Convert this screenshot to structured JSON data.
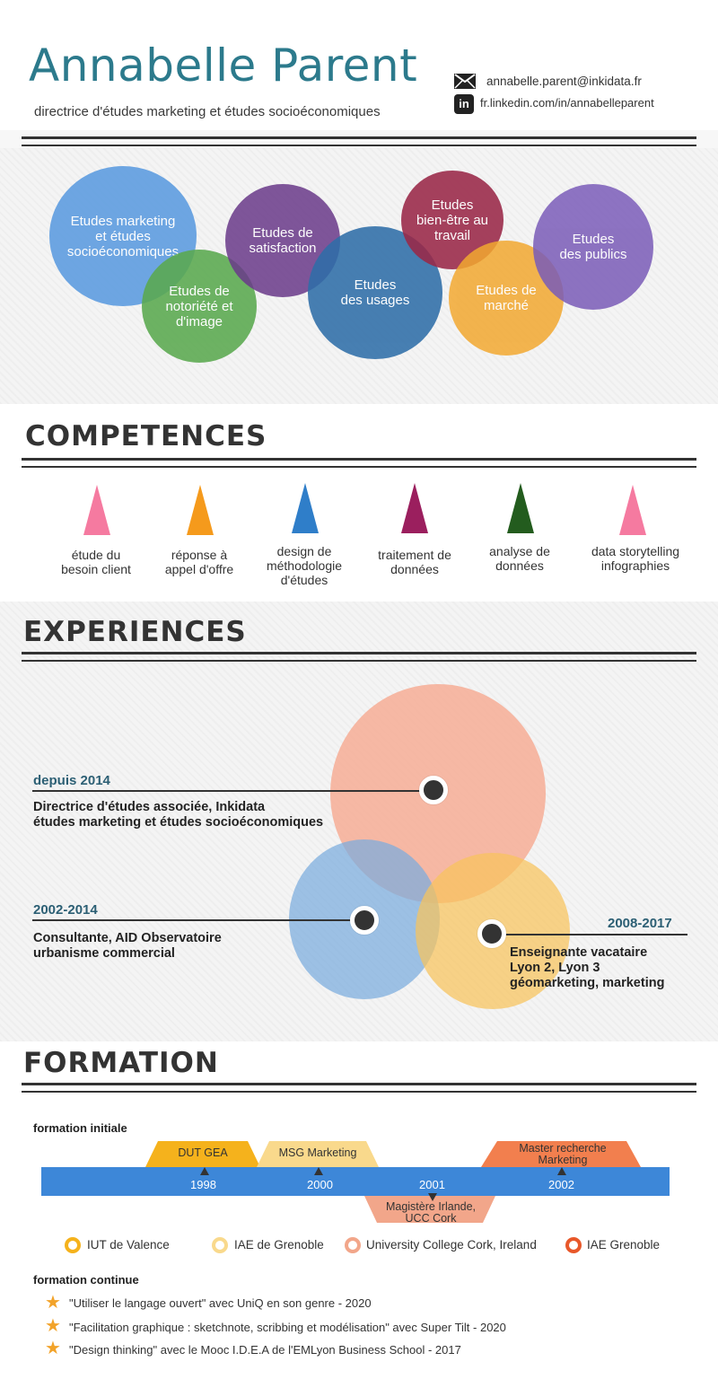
{
  "header": {
    "name": "Annabelle Parent",
    "subtitle": "directrice d'études marketing et études socioéconomiques",
    "email": "annabelle.parent@inkidata.fr",
    "linkedin": "fr.linkedin.com/in/annabelleparent",
    "email_icon": "envelope-icon",
    "linkedin_icon": "linkedin-icon"
  },
  "bubbles": [
    {
      "label": "Etudes marketing\net études\nsocioéconomiques",
      "color": "#5b9be0"
    },
    {
      "label": "Etudes de\nnotoriété et\nd'image",
      "color": "#5aa94f"
    },
    {
      "label": "Etudes de\nsatisfaction",
      "color": "#6a3a8a"
    },
    {
      "label": "Etudes\ndes usages",
      "color": "#2f6ea8"
    },
    {
      "label": "Etudes\nbien-être au\ntravail",
      "color": "#9a2848"
    },
    {
      "label": "Etudes de\nmarché",
      "color": "#f2a830"
    },
    {
      "label": "Etudes\ndes publics",
      "color": "#7a5cb8"
    }
  ],
  "competences": {
    "title": "COMPETENCES",
    "items": [
      {
        "label": "étude du\nbesoin client",
        "color": "#f57aa0"
      },
      {
        "label": "réponse à\nappel d'offre",
        "color": "#f59a1c"
      },
      {
        "label": "design de\nméthodologie\nd'études",
        "color": "#2f7ec9"
      },
      {
        "label": "traitement de\ndonnées",
        "color": "#9b1f5e"
      },
      {
        "label": "analyse de\ndonnées",
        "color": "#235c1e"
      },
      {
        "label": "data storytelling\ninfographies",
        "color": "#f57aa0"
      }
    ]
  },
  "experiences": {
    "title": "EXPERIENCES",
    "items": [
      {
        "date": "depuis 2014",
        "text": "Directrice d'études associée, Inkidata\nétudes marketing et études socioéconomiques",
        "color": "#f7a489"
      },
      {
        "date": "2002-2014",
        "text": "Consultante, AID Observatoire\nurbanisme commercial",
        "color": "#7aacde"
      },
      {
        "date": "2008-2017",
        "text": "Enseignante vacataire\nLyon 2, Lyon 3\ngéomarketing, marketing",
        "color": "#f8c45c"
      }
    ]
  },
  "formation": {
    "title": "FORMATION",
    "initiale_label": "formation initiale",
    "years": [
      "1998",
      "2000",
      "2001",
      "2002"
    ],
    "diplomas": [
      {
        "label": "DUT GEA",
        "color": "#f5b21c"
      },
      {
        "label": "MSG Marketing",
        "color": "#f9d98c"
      },
      {
        "label": "Magistère Irlande,\nUCC Cork",
        "color": "#f2a68a"
      },
      {
        "label": "Master recherche\nMarketing",
        "color": "#f27f4e"
      }
    ],
    "legend": [
      {
        "label": "IUT de Valence",
        "color": "#f5b21c"
      },
      {
        "label": "IAE de Grenoble",
        "color": "#f9d98c"
      },
      {
        "label": "University College Cork, Ireland",
        "color": "#f2a68a"
      },
      {
        "label": "IAE Grenoble",
        "color": "#e8582a"
      }
    ],
    "continue_label": "formation continue",
    "continue": [
      "\"Utiliser le langage ouvert\" avec UniQ en son genre - 2020",
      "\"Facilitation graphique : sketchnote, scribbing et modélisation\"  avec Super Tilt - 2020",
      "\"Design thinking\" avec le Mooc I.D.E.A de l'EMLyon Business School - 2017"
    ],
    "star_icon": "star-icon"
  }
}
